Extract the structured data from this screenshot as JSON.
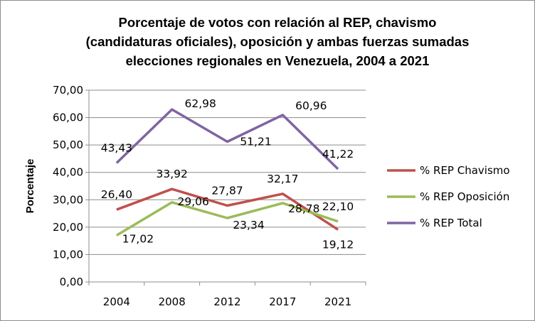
{
  "chart_data": {
    "type": "line",
    "title_lines": [
      "Porcentaje de votos con relación al REP, chavismo",
      "(candidaturas oficiales), oposición y ambas fuerzas sumadas",
      "elecciones regionales en Venezuela, 2004 a 2021"
    ],
    "ylabel": "Porcentaje",
    "xlabel": "",
    "categories": [
      "2004",
      "2008",
      "2012",
      "2017",
      "2021"
    ],
    "ylim": [
      0,
      70
    ],
    "yticks": [
      "0,00",
      "10,00",
      "20,00",
      "30,00",
      "40,00",
      "50,00",
      "60,00",
      "70,00"
    ],
    "grid": true,
    "legend_position": "right",
    "series": [
      {
        "name": "% REP Chavismo",
        "color": "#C0504D",
        "values": [
          26.4,
          33.92,
          27.87,
          32.17,
          19.12
        ],
        "labels": [
          "26,40",
          "33,92",
          "27,87",
          "32,17",
          "19,12"
        ]
      },
      {
        "name": "% REP Oposición",
        "color": "#9BBB59",
        "values": [
          17.02,
          29.06,
          23.34,
          28.78,
          22.1
        ],
        "labels": [
          "17,02",
          "29,06",
          "23,34",
          "28,78",
          "22,10"
        ]
      },
      {
        "name": "% REP Total",
        "color": "#8064A2",
        "values": [
          43.43,
          62.98,
          51.21,
          60.96,
          41.22
        ],
        "labels": [
          "43,43",
          "62,98",
          "51,21",
          "60,96",
          "41,22"
        ]
      }
    ]
  }
}
